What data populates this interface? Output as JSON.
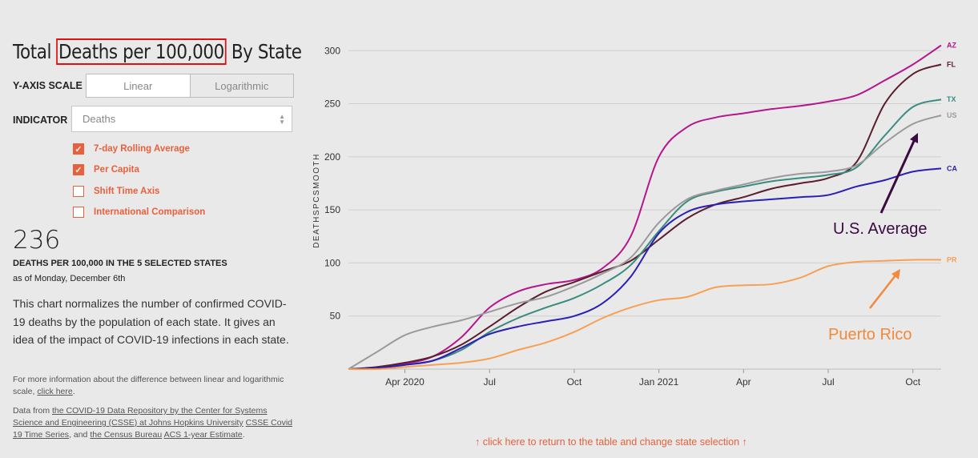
{
  "title": {
    "prefix": "Total ",
    "highlight": "Deaths per 100,000",
    "suffix": " By State"
  },
  "y_axis_scale": {
    "label": "Y-AXIS SCALE",
    "options": [
      "Linear",
      "Logarithmic"
    ],
    "selected": "Linear"
  },
  "indicator": {
    "label": "INDICATOR",
    "value": "Deaths"
  },
  "checkboxes": [
    {
      "label": "7-day Rolling Average",
      "checked": true
    },
    {
      "label": "Per Capita",
      "checked": true
    },
    {
      "label": "Shift Time Axis",
      "checked": false
    },
    {
      "label": "International Comparison",
      "checked": false
    }
  ],
  "summary": {
    "value": "236",
    "label": "DEATHS PER 100,000 IN THE 5 SELECTED STATES",
    "as_of": "as of Monday, December 6th"
  },
  "description": "This chart normalizes the number of confirmed COVID-19 deaths by the population of each state. It gives an idea of the impact of COVID-19 infections in each state.",
  "note1": {
    "text": "For more information about the difference between linear and logarithmic scale, ",
    "link": "click here",
    "end": "."
  },
  "note2": {
    "t1": "Data from ",
    "l1": "the COVID-19 Data Repository by the Center for Systems Science and Engineering (CSSE) at Johns Hopkins University",
    "t2": " ",
    "l2": "CSSE Covid 19 Time Series",
    "t3": ", and ",
    "l3": "the Census Bureau",
    "t4": " ",
    "l4": "ACS 1-year Estimate",
    "t5": "."
  },
  "footer_link": "↑ click here to return to the table and change state selection ↑",
  "chart_data": {
    "type": "line",
    "ylabel": "DEATHSPCSMOOTH",
    "ylim": [
      0,
      310
    ],
    "yticks": [
      50,
      100,
      150,
      200,
      250,
      300
    ],
    "xticks": [
      {
        "label": "Apr 2020",
        "month": 2
      },
      {
        "label": "Jul",
        "month": 5
      },
      {
        "label": "Oct",
        "month": 8
      },
      {
        "label": "Jan 2021",
        "month": 11
      },
      {
        "label": "Apr",
        "month": 14
      },
      {
        "label": "Jul",
        "month": 17
      },
      {
        "label": "Oct",
        "month": 20
      }
    ],
    "x": [
      0,
      1,
      2,
      3,
      4,
      5,
      6,
      7,
      8,
      9,
      10,
      11,
      12,
      13,
      14,
      15,
      16,
      17,
      18,
      19,
      20,
      21
    ],
    "series": [
      {
        "name": "AZ",
        "color": "#b5168e",
        "values": [
          0,
          1,
          5,
          12,
          30,
          58,
          73,
          80,
          84,
          95,
          125,
          200,
          228,
          237,
          241,
          245,
          248,
          252,
          258,
          272,
          287,
          305
        ]
      },
      {
        "name": "FL",
        "color": "#5a1e2c",
        "values": [
          0,
          2,
          6,
          12,
          23,
          40,
          58,
          73,
          82,
          92,
          102,
          122,
          142,
          155,
          162,
          170,
          175,
          180,
          195,
          250,
          278,
          287
        ]
      },
      {
        "name": "TX",
        "color": "#3a8c7e",
        "values": [
          0,
          1,
          4,
          8,
          18,
          35,
          48,
          58,
          67,
          80,
          98,
          130,
          158,
          167,
          172,
          177,
          180,
          183,
          190,
          220,
          247,
          254
        ]
      },
      {
        "name": "US",
        "color": "#9a9a9a",
        "values": [
          0,
          16,
          32,
          40,
          46,
          54,
          62,
          68,
          78,
          90,
          105,
          138,
          160,
          168,
          174,
          180,
          184,
          186,
          192,
          213,
          231,
          239
        ]
      },
      {
        "name": "CA",
        "color": "#2b1fb4",
        "values": [
          0,
          1,
          4,
          8,
          20,
          33,
          40,
          45,
          50,
          62,
          87,
          128,
          148,
          155,
          158,
          160,
          162,
          164,
          172,
          178,
          186,
          189
        ]
      },
      {
        "name": "PR",
        "color": "#f7a055",
        "values": [
          0,
          0,
          2,
          4,
          6,
          10,
          18,
          25,
          35,
          48,
          58,
          65,
          68,
          77,
          79,
          80,
          86,
          97,
          101,
          102,
          103,
          103
        ]
      }
    ],
    "annotations": [
      {
        "text": "U.S. Average",
        "color": "#3a0a40"
      },
      {
        "text": "Puerto Rico",
        "color": "#f08a3c"
      }
    ]
  }
}
